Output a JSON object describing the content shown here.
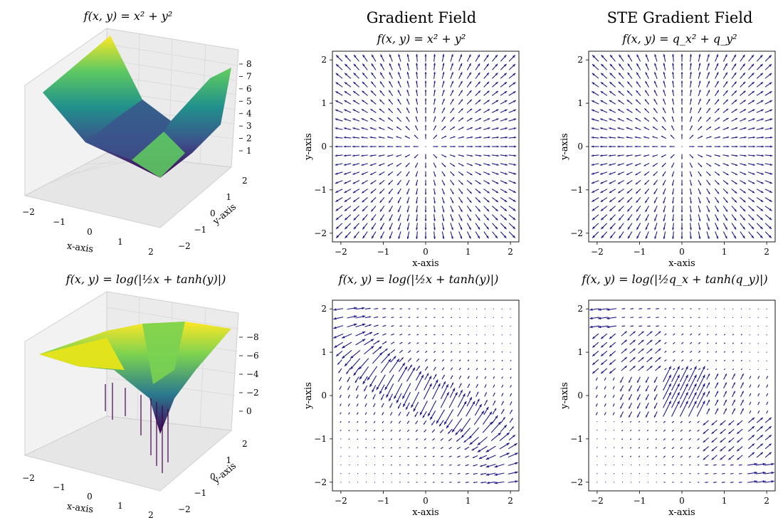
{
  "chart_data": [
    {
      "id": "surface-top",
      "type": "surface3d",
      "title": "f(x, y) = x² + y²",
      "xlabel": "x-axis",
      "ylabel": "y-axis",
      "xticks": [
        "−2",
        "−1",
        "0",
        "1",
        "2"
      ],
      "yticks": [
        "−2",
        "−1",
        "0",
        "1",
        "2"
      ],
      "zticks": [
        "1",
        "2",
        "3",
        "4",
        "5",
        "6",
        "7",
        "8"
      ],
      "xlim": [
        -2,
        2
      ],
      "ylim": [
        -2,
        2
      ],
      "zlim": [
        0,
        8
      ],
      "colormap": "viridis"
    },
    {
      "id": "quiver-top-mid",
      "type": "quiver",
      "suptitle": "Gradient Field",
      "title": "f(x, y) = x² + y²",
      "xlabel": "x-axis",
      "ylabel": "y-axis",
      "xticks": [
        "−2",
        "−1",
        "0",
        "1",
        "2"
      ],
      "yticks": [
        "−2",
        "−1",
        "0",
        "1",
        "2"
      ],
      "xlim": [
        -2.2,
        2.2
      ],
      "ylim": [
        -2.2,
        2.2
      ],
      "grid_n": 21,
      "field": "x2y2",
      "arrow_color": "#1f1a8a"
    },
    {
      "id": "quiver-top-right",
      "type": "quiver",
      "suptitle": "STE Gradient Field",
      "title": "f(x, y) = q_x² + q_y²",
      "xlabel": "x-axis",
      "ylabel": "y-axis",
      "xticks": [
        "−2",
        "−1",
        "0",
        "1",
        "2"
      ],
      "yticks": [
        "−2",
        "−1",
        "0",
        "1",
        "2"
      ],
      "xlim": [
        -2.2,
        2.2
      ],
      "ylim": [
        -2.2,
        2.2
      ],
      "grid_n": 21,
      "field": "x2y2",
      "arrow_color": "#1f1a8a"
    },
    {
      "id": "surface-bottom",
      "type": "surface3d",
      "title": "f(x, y) = log(|½x + tanh(y)|)",
      "xlabel": "x-axis",
      "ylabel": "y-axis",
      "xticks": [
        "−2",
        "−1",
        "0",
        "1",
        "2"
      ],
      "yticks": [
        "−2",
        "−1",
        "0",
        "1",
        "2"
      ],
      "zticks": [
        "0",
        "−2",
        "−4",
        "−6",
        "−8"
      ],
      "xlim": [
        -2,
        2
      ],
      "ylim": [
        -2,
        2
      ],
      "zlim": [
        -9,
        1
      ],
      "colormap": "viridis"
    },
    {
      "id": "quiver-bottom-mid",
      "type": "quiver",
      "title": "f(x, y) = log(|½x + tanh(y)|)",
      "xlabel": "x-axis",
      "ylabel": "y-axis",
      "xticks": [
        "−2",
        "−1",
        "0",
        "1",
        "2"
      ],
      "yticks": [
        "−2",
        "−1",
        "0",
        "1",
        "2"
      ],
      "xlim": [
        -2.2,
        2.2
      ],
      "ylim": [
        -2.2,
        2.2
      ],
      "grid_n": 21,
      "field": "logtanh",
      "arrow_color": "#1f1a8a"
    },
    {
      "id": "quiver-bottom-right",
      "type": "quiver",
      "title": "f(x, y) = log(|½q_x + tanh(q_y)|)",
      "xlabel": "x-axis",
      "ylabel": "y-axis",
      "xticks": [
        "−2",
        "−1",
        "0",
        "1",
        "2"
      ],
      "yticks": [
        "−2",
        "−1",
        "0",
        "1",
        "2"
      ],
      "xlim": [
        -2.2,
        2.2
      ],
      "ylim": [
        -2.2,
        2.2
      ],
      "grid_n": 21,
      "field": "logtanh_ste",
      "arrow_color": "#1f1a8a"
    }
  ],
  "titles": {
    "col2": "Gradient Field",
    "col3": "STE Gradient Field",
    "eq_top_left": "f(x, y) = x² + y²",
    "eq_top_mid": "f(x, y) = x² + y²",
    "eq_top_right": "f(x, y) = q_x² + q_y²",
    "eq_bot_left": "f(x, y) = log(|½x + tanh(y)|)",
    "eq_bot_mid": "f(x, y) = log(|½x + tanh(y)|)",
    "eq_bot_right": "f(x, y) = log(|½q_x + tanh(q_y)|)"
  },
  "labels": {
    "x_axis": "x-axis",
    "y_axis": "y-axis"
  }
}
